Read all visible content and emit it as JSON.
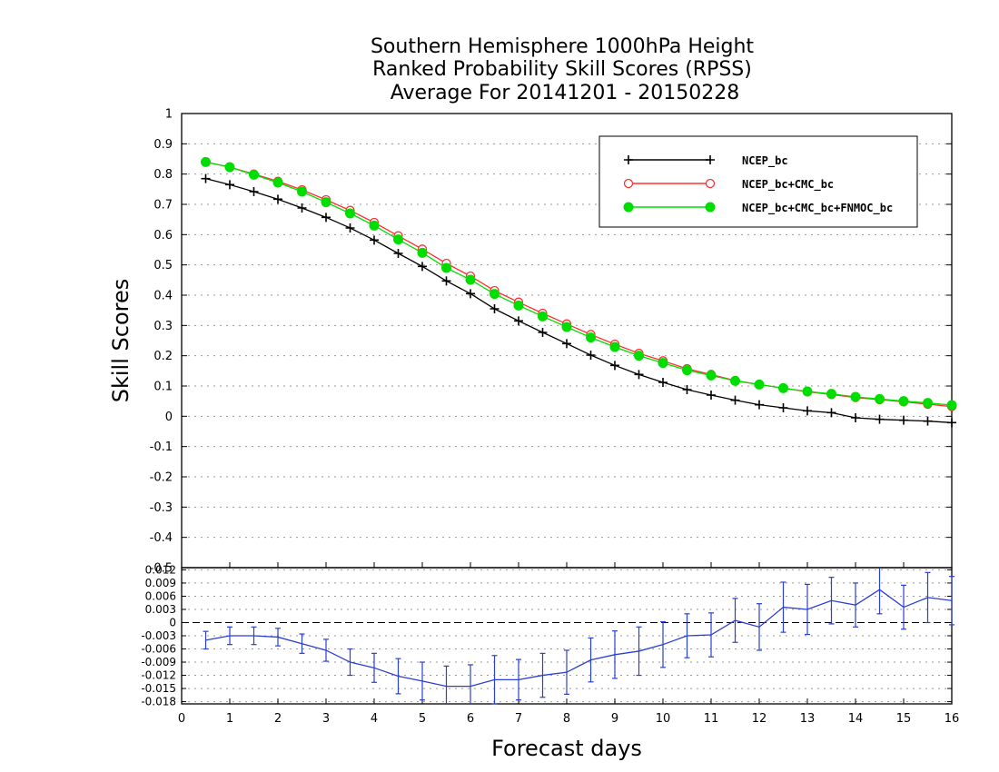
{
  "chart_data": [
    {
      "type": "line",
      "title": [
        "Southern Hemisphere 1000hPa Height",
        "Ranked Probability Skill Scores (RPSS)",
        "Average For 20141201 - 20150228"
      ],
      "ylabel": "Skill Scores",
      "xlabel": "Forecast days",
      "xlim": [
        0,
        16
      ],
      "ylim": [
        -0.5,
        1
      ],
      "yticks": [
        "1",
        "0.9",
        "0.8",
        "0.7",
        "0.6",
        "0.5",
        "0.4",
        "0.3",
        "0.2",
        "0.1",
        "0",
        "-0.1",
        "-0.2",
        "-0.3",
        "-0.4",
        "-0.5"
      ],
      "grid": "dotted",
      "legend_position": "top-right",
      "x": [
        0.5,
        1,
        1.5,
        2,
        2.5,
        3,
        3.5,
        4,
        4.5,
        5,
        5.5,
        6,
        6.5,
        7,
        7.5,
        8,
        8.5,
        9,
        9.5,
        10,
        10.5,
        11,
        11.5,
        12,
        12.5,
        13,
        13.5,
        14,
        14.5,
        15,
        15.5,
        16
      ],
      "series": [
        {
          "name": "NCEP_bc",
          "color": "#000000",
          "marker": "plus",
          "values": [
            0.785,
            0.765,
            0.742,
            0.717,
            0.688,
            0.657,
            0.622,
            0.582,
            0.538,
            0.495,
            0.447,
            0.405,
            0.355,
            0.315,
            0.277,
            0.24,
            0.202,
            0.168,
            0.138,
            0.112,
            0.088,
            0.07,
            0.053,
            0.038,
            0.028,
            0.018,
            0.012,
            -0.005,
            -0.01,
            -0.013,
            -0.016,
            -0.021
          ]
        },
        {
          "name": "NCEP_bc+CMC_bc",
          "color": "#ff3030",
          "marker": "open-circle",
          "values": [
            0.84,
            0.823,
            0.8,
            0.776,
            0.748,
            0.715,
            0.68,
            0.64,
            0.596,
            0.552,
            0.505,
            0.463,
            0.415,
            0.377,
            0.34,
            0.305,
            0.27,
            0.238,
            0.208,
            0.183,
            0.157,
            0.138,
            0.118,
            0.105,
            0.093,
            0.081,
            0.072,
            0.062,
            0.055,
            0.048,
            0.04,
            0.032
          ]
        },
        {
          "name": "NCEP_bc+CMC_bc+FNMOC_bc",
          "color": "#00dd00",
          "marker": "filled-circle",
          "values": [
            0.84,
            0.823,
            0.798,
            0.772,
            0.742,
            0.707,
            0.67,
            0.63,
            0.584,
            0.54,
            0.49,
            0.451,
            0.404,
            0.366,
            0.33,
            0.295,
            0.26,
            0.229,
            0.2,
            0.176,
            0.152,
            0.135,
            0.117,
            0.105,
            0.093,
            0.082,
            0.074,
            0.064,
            0.057,
            0.05,
            0.044,
            0.037
          ]
        }
      ]
    },
    {
      "type": "line",
      "xlabel": "Forecast days",
      "xticks": [
        "0",
        "1",
        "2",
        "3",
        "4",
        "5",
        "6",
        "7",
        "8",
        "9",
        "10",
        "11",
        "12",
        "13",
        "14",
        "15",
        "16"
      ],
      "xlim": [
        0,
        16
      ],
      "ylim": [
        -0.0185,
        0.0125
      ],
      "yticks": [
        "0.012",
        "0.009",
        "0.006",
        "0.003",
        "0",
        "-0.003",
        "-0.006",
        "-0.009",
        "-0.012",
        "-0.015",
        "-0.018"
      ],
      "grid": "dotted",
      "zero_line": "dashed",
      "color": "#2a3fd6",
      "x": [
        0.5,
        1,
        1.5,
        2,
        2.5,
        3,
        3.5,
        4,
        4.5,
        5,
        5.5,
        6,
        6.5,
        7,
        7.5,
        8,
        8.5,
        9,
        9.5,
        10,
        10.5,
        11,
        11.5,
        12,
        12.5,
        13,
        13.5,
        14,
        14.5,
        15,
        15.5,
        16
      ],
      "series": [
        {
          "values": [
            -0.004,
            -0.003,
            -0.003,
            -0.0033,
            -0.0048,
            -0.0063,
            -0.009,
            -0.0103,
            -0.0122,
            -0.0133,
            -0.0145,
            -0.0145,
            -0.013,
            -0.013,
            -0.012,
            -0.0113,
            -0.0085,
            -0.0073,
            -0.0065,
            -0.005,
            -0.003,
            -0.0028,
            0.0005,
            -0.001,
            0.0035,
            0.003,
            0.005,
            0.004,
            0.0075,
            0.0035,
            0.0057,
            0.005
          ],
          "errors": [
            0.002,
            0.002,
            0.002,
            0.002,
            0.0022,
            0.0025,
            0.003,
            0.0033,
            0.004,
            0.0043,
            0.0046,
            0.0049,
            0.0055,
            0.0046,
            0.005,
            0.005,
            0.005,
            0.0054,
            0.0055,
            0.0052,
            0.005,
            0.005,
            0.005,
            0.0053,
            0.0057,
            0.0057,
            0.0053,
            0.005,
            0.0055,
            0.005,
            0.0057,
            0.0055
          ]
        }
      ]
    }
  ]
}
